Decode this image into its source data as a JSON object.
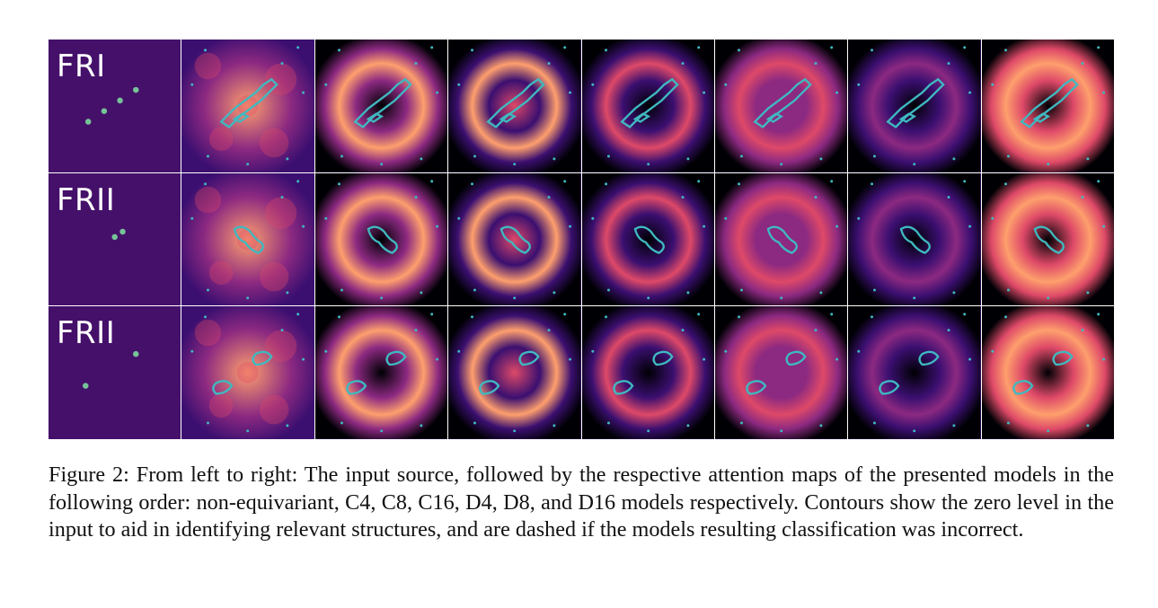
{
  "figure": {
    "row_labels": [
      "FRI",
      "FRII",
      "FRII"
    ],
    "columns": [
      "input",
      "non-equivariant",
      "C4",
      "C8",
      "C16",
      "D4",
      "D8",
      "D16"
    ],
    "colormap": [
      "#000004",
      "#3b0f70",
      "#8c2981",
      "#de4968",
      "#fe9f6d",
      "#fcfdbf"
    ],
    "contour_color": "#3fb9c0"
  },
  "caption": {
    "text": "Figure 2: From left to right: The input source, followed by the respective attention maps of the presented models in the following order: non-equivariant, C4, C8, C16, D4, D8, and D16 models respectively. Contours show the zero level in the input to aid in identifying relevant structures, and are dashed if the models resulting classification was incorrect."
  }
}
